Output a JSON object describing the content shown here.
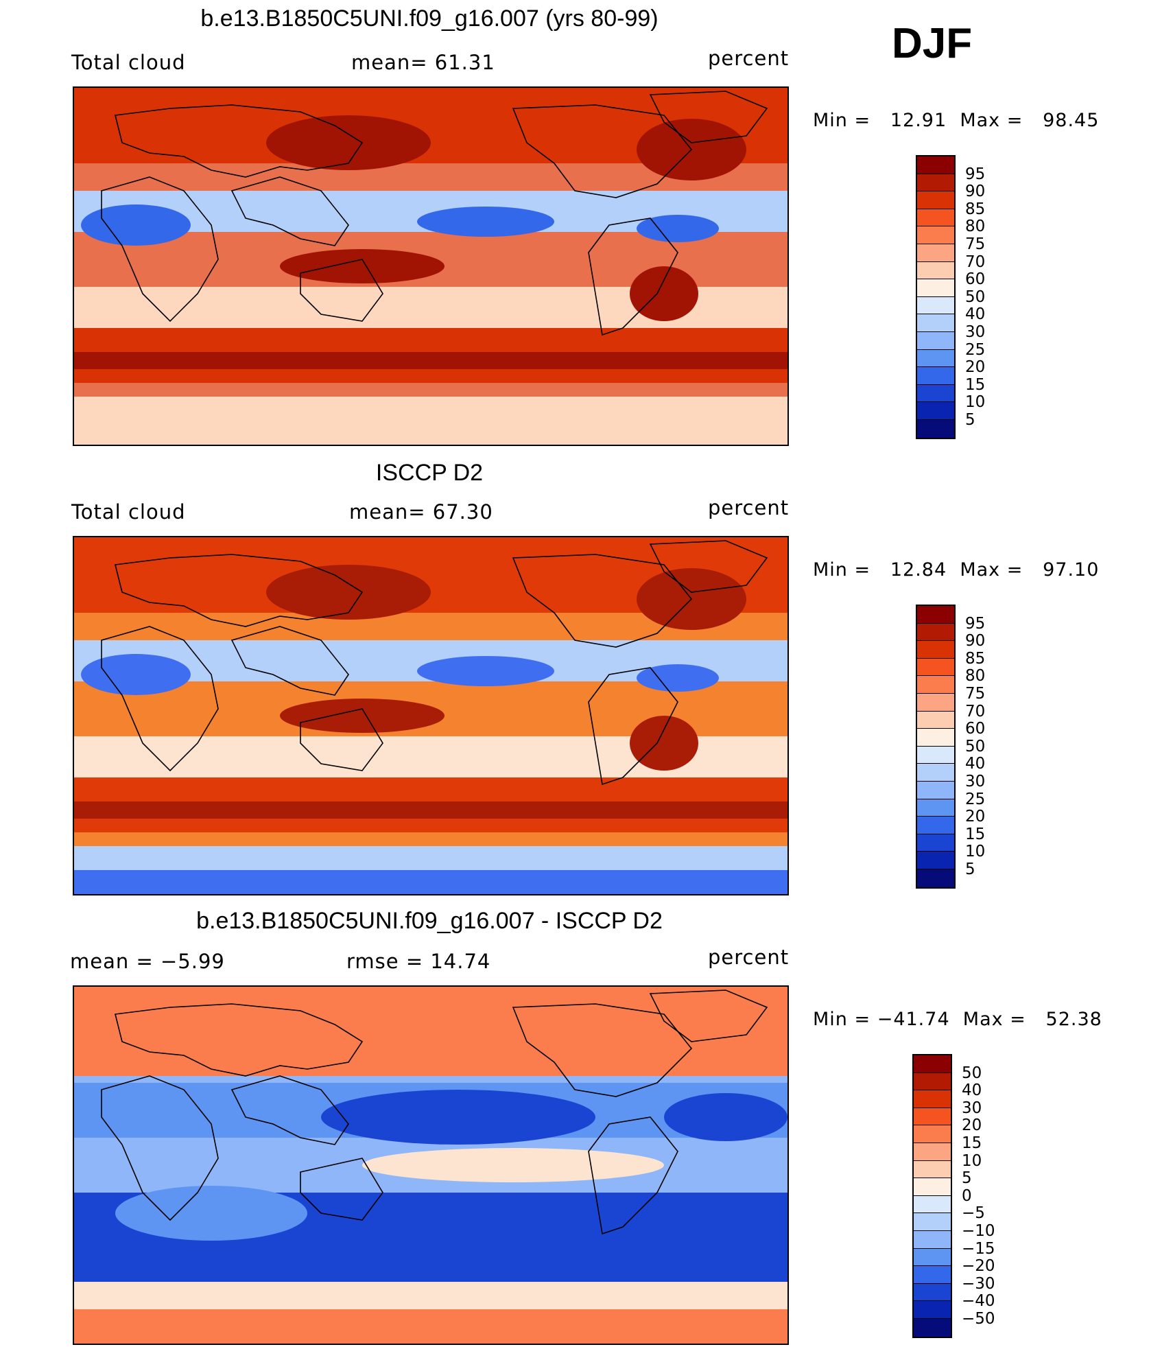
{
  "season": "DJF",
  "panels": [
    {
      "title": "b.e13.B1850C5UNI.f09_g16.007 (yrs 80-99)",
      "left_label": "Total cloud",
      "center_label": "mean=   61.31",
      "right_label": "percent",
      "minmax": "Min =   12.91  Max =   98.45",
      "colorbar": {
        "labels": [
          "95",
          "90",
          "85",
          "80",
          "75",
          "70",
          "60",
          "50",
          "40",
          "30",
          "25",
          "20",
          "15",
          "10",
          "5"
        ],
        "colors": [
          "#8b0000",
          "#b31a04",
          "#d93305",
          "#f5531f",
          "#fb7d4e",
          "#fca583",
          "#fdcdb1",
          "#fdf0e2",
          "#d9e9fb",
          "#b3d0fa",
          "#8eb6f8",
          "#5f95f2",
          "#3468ea",
          "#1a45d3",
          "#0a24b2",
          "#060b7a"
        ]
      },
      "map_palette": {
        "base": "#e9704c",
        "warm": "#d93305",
        "hot": "#a11403",
        "pale": "#fdd8bf",
        "cool": "#b3d0fa",
        "cold": "#3468ea"
      }
    },
    {
      "title": "ISCCP D2",
      "left_label": "Total cloud",
      "center_label": "mean=   67.30",
      "right_label": "percent",
      "minmax": "Min =   12.84  Max =   97.10",
      "colorbar": {
        "labels": [
          "95",
          "90",
          "85",
          "80",
          "75",
          "70",
          "60",
          "50",
          "40",
          "30",
          "25",
          "20",
          "15",
          "10",
          "5"
        ],
        "colors": [
          "#8b0000",
          "#b31a04",
          "#d93305",
          "#f5531f",
          "#fb7d4e",
          "#fca583",
          "#fdcdb1",
          "#fdf0e2",
          "#d9e9fb",
          "#b3d0fa",
          "#8eb6f8",
          "#5f95f2",
          "#3468ea",
          "#1a45d3",
          "#0a24b2",
          "#060b7a"
        ]
      },
      "map_palette": {
        "base": "#f5822f",
        "warm": "#e03a08",
        "hot": "#a91c06",
        "pale": "#fde4d0",
        "cool": "#b3d0fa",
        "cold": "#3f6ff0"
      }
    },
    {
      "title": "b.e13.B1850C5UNI.f09_g16.007 - ISCCP D2",
      "left_label": "mean =   −5.99",
      "center_label": "rmse =   14.74",
      "right_label": "percent",
      "minmax": "Min = −41.74  Max =   52.38",
      "colorbar": {
        "labels": [
          "50",
          "40",
          "30",
          "20",
          "15",
          "10",
          "5",
          "0",
          "−5",
          "−10",
          "−15",
          "−20",
          "−30",
          "−40",
          "−50"
        ],
        "colors": [
          "#8b0000",
          "#b31a04",
          "#d93305",
          "#f5531f",
          "#fb7d4e",
          "#fca583",
          "#fdcdb1",
          "#fdf0e2",
          "#d9e9fb",
          "#b3d0fa",
          "#8eb6f8",
          "#5f95f2",
          "#3468ea",
          "#1a45d3",
          "#0a24b2",
          "#060b7a"
        ]
      },
      "map_palette": {
        "base": "#8eb6f8",
        "warm": "#fb7d4e",
        "hot": "#d93305",
        "pale": "#fde4d0",
        "cool": "#5f95f2",
        "cold": "#1a45d3"
      }
    }
  ]
}
